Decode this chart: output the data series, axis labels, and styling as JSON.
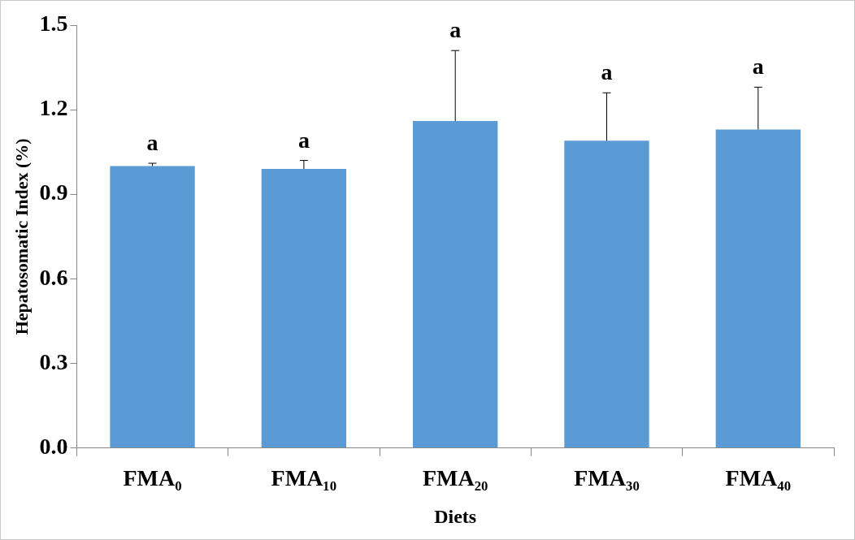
{
  "chart_data": {
    "type": "bar",
    "xlabel": "Diets",
    "ylabel": "Hepatosomatic Index (%)",
    "categories": [
      "FMA₀",
      "FMA₁₀",
      "FMA₂₀",
      "FMA₃₀",
      "FMA₄₀"
    ],
    "values": [
      1.0,
      0.99,
      1.16,
      1.09,
      1.13
    ],
    "color": "#5b9bd5",
    "errors": [
      [
        1.0,
        1.01
      ],
      [
        0.99,
        1.02
      ],
      [
        1.16,
        1.41
      ],
      [
        1.09,
        1.26
      ],
      [
        1.13,
        1.28
      ]
    ],
    "ylim": [
      0,
      1.5
    ],
    "yticks": [
      {
        "value": 0,
        "label": "0.0"
      },
      {
        "value": 0.3,
        "label": "0.3"
      },
      {
        "value": 0.6,
        "label": "0.6"
      },
      {
        "value": 0.9,
        "label": "0.9"
      },
      {
        "value": 1.2,
        "label": "1.2"
      },
      {
        "value": 1.5,
        "label": "1.5"
      }
    ],
    "grid": false,
    "legend": false,
    "annotations": [
      "a",
      "a",
      "a",
      "a",
      "a"
    ]
  }
}
